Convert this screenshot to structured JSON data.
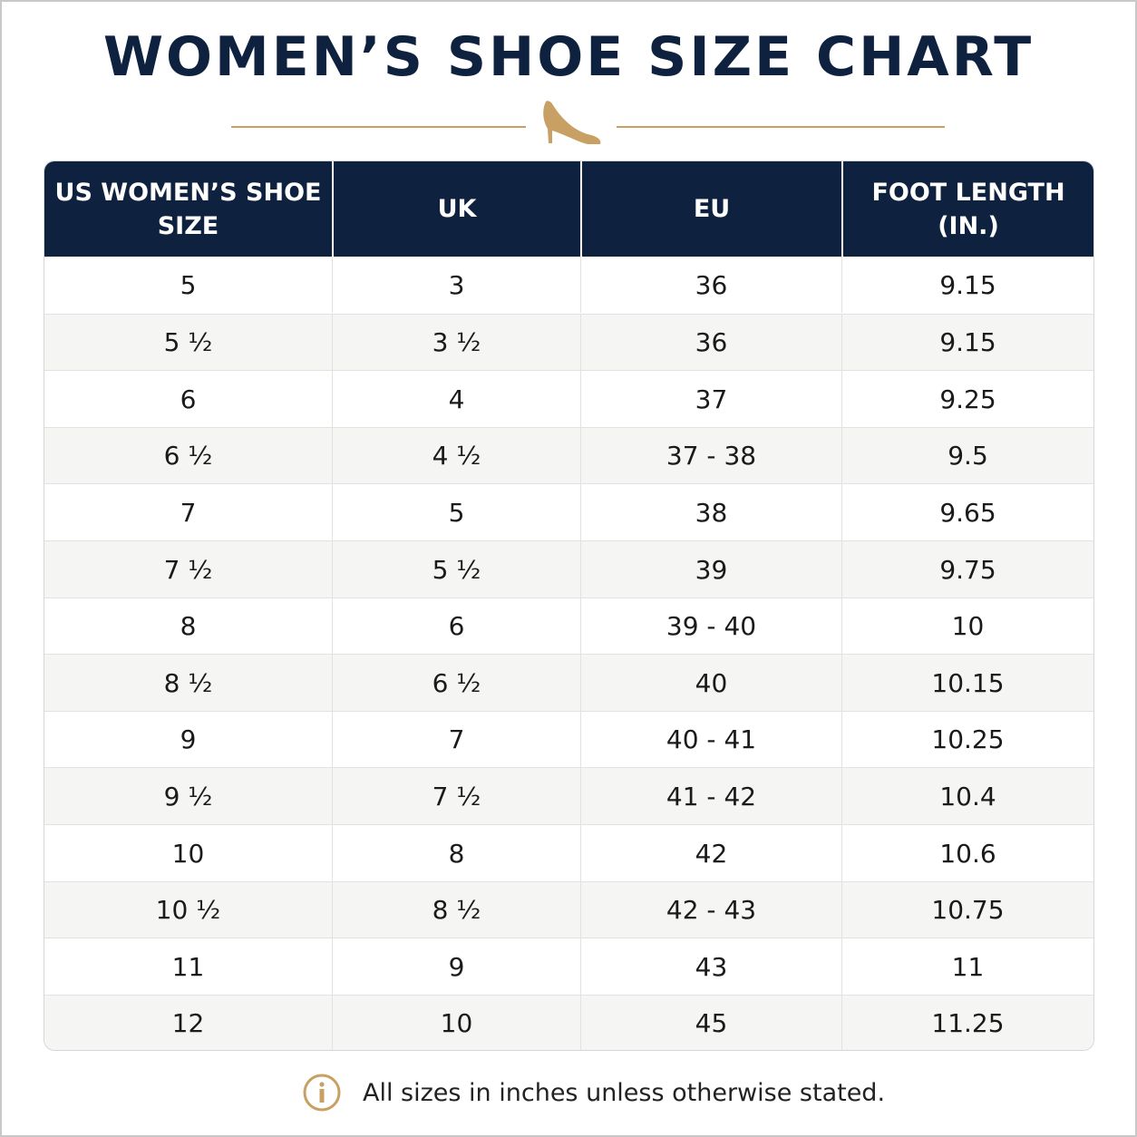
{
  "header": {
    "title": "WOMEN’S SHOE SIZE CHART"
  },
  "table": {
    "columns": [
      "US WOMEN’S SHOE SIZE",
      "UK",
      "EU",
      "FOOT LENGTH (IN.)"
    ],
    "rows": [
      [
        "5",
        "3",
        "36",
        "9.15"
      ],
      [
        "5 ½",
        "3 ½",
        "36",
        "9.15"
      ],
      [
        "6",
        "4",
        "37",
        "9.25"
      ],
      [
        "6 ½",
        "4 ½",
        "37 - 38",
        "9.5"
      ],
      [
        "7",
        "5",
        "38",
        "9.65"
      ],
      [
        "7 ½",
        "5 ½",
        "39",
        "9.75"
      ],
      [
        "8",
        "6",
        "39 - 40",
        "10"
      ],
      [
        "8 ½",
        "6 ½",
        "40",
        "10.15"
      ],
      [
        "9",
        "7",
        "40 - 41",
        "10.25"
      ],
      [
        "9 ½",
        "7 ½",
        "41 - 42",
        "10.4"
      ],
      [
        "10",
        "8",
        "42",
        "10.6"
      ],
      [
        "10 ½",
        "8 ½",
        "42 - 43",
        "10.75"
      ],
      [
        "11",
        "9",
        "43",
        "11"
      ],
      [
        "12",
        "10",
        "45",
        "11.25"
      ]
    ]
  },
  "footer": {
    "note": "All sizes in inches unless otherwise stated."
  }
}
